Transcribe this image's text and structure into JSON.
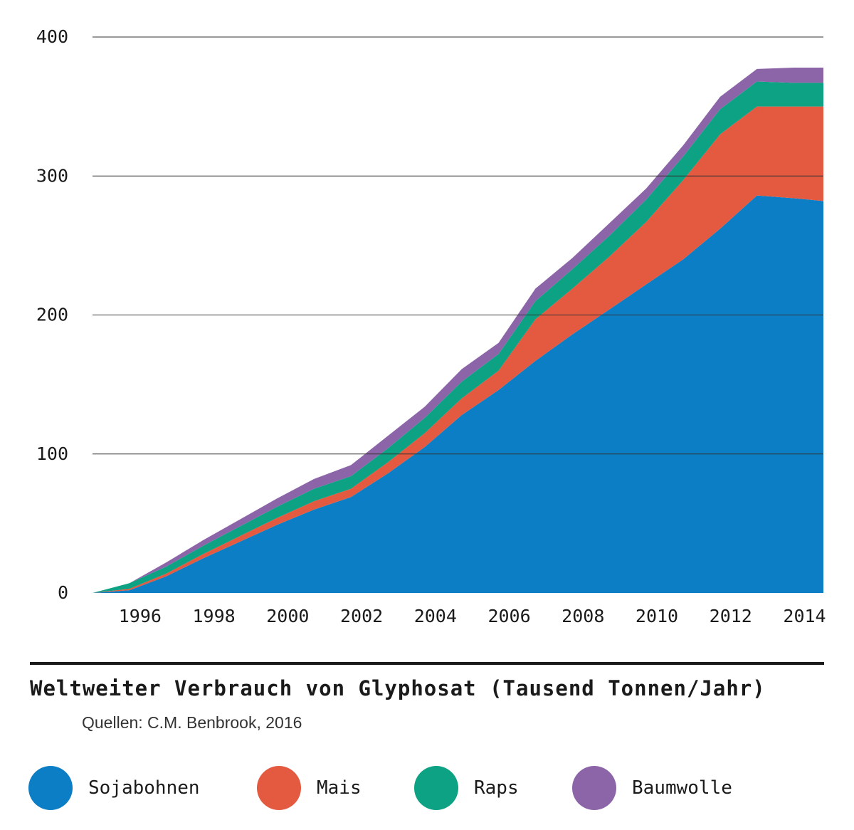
{
  "chart_data": {
    "type": "area",
    "stacked": true,
    "title": "Weltweiter Verbrauch von Glyphosat (Tausend Tonnen/Jahr)",
    "source": "Quellen: C.M. Benbrook, 2016",
    "xlabel": "",
    "ylabel": "",
    "ylim": [
      0,
      400
    ],
    "xlim": [
      1995,
      2014.8
    ],
    "yticks": [
      0,
      100,
      200,
      300,
      400
    ],
    "xticks": [
      "1996",
      "1998",
      "2000",
      "2002",
      "2004",
      "2006",
      "2008",
      "2010",
      "2012",
      "2014"
    ],
    "grid": true,
    "legend_position": "bottom",
    "x": [
      1995,
      1996,
      1997,
      1998,
      1999,
      2000,
      2001,
      2002,
      2003,
      2004,
      2005,
      2006,
      2007,
      2008,
      2009,
      2010,
      2011,
      2012,
      2013,
      2014,
      2014.8
    ],
    "series": [
      {
        "name": "Sojabohnen",
        "color": "#0b7ec5",
        "values": [
          0,
          2,
          12,
          25,
          37,
          49,
          60,
          69,
          86,
          105,
          128,
          146,
          167,
          186,
          204,
          222,
          240,
          262,
          286,
          284,
          282
        ]
      },
      {
        "name": "Mais",
        "color": "#e35a41",
        "values": [
          0,
          1,
          2,
          3,
          4,
          5,
          6,
          6,
          8,
          10,
          12,
          14,
          30,
          33,
          38,
          45,
          57,
          68,
          64,
          66,
          68
        ]
      },
      {
        "name": "Raps",
        "color": "#0ca283",
        "values": [
          0,
          4,
          5,
          6,
          7,
          8,
          9,
          9,
          10,
          11,
          12,
          12,
          13,
          14,
          15,
          16,
          17,
          18,
          18,
          17,
          17
        ]
      },
      {
        "name": "Baumwolle",
        "color": "#8c64a8",
        "values": [
          0,
          0,
          3,
          4,
          5,
          6,
          7,
          8,
          9,
          8,
          9,
          8,
          9,
          8,
          9,
          8,
          8,
          9,
          9,
          11,
          11
        ]
      }
    ]
  }
}
